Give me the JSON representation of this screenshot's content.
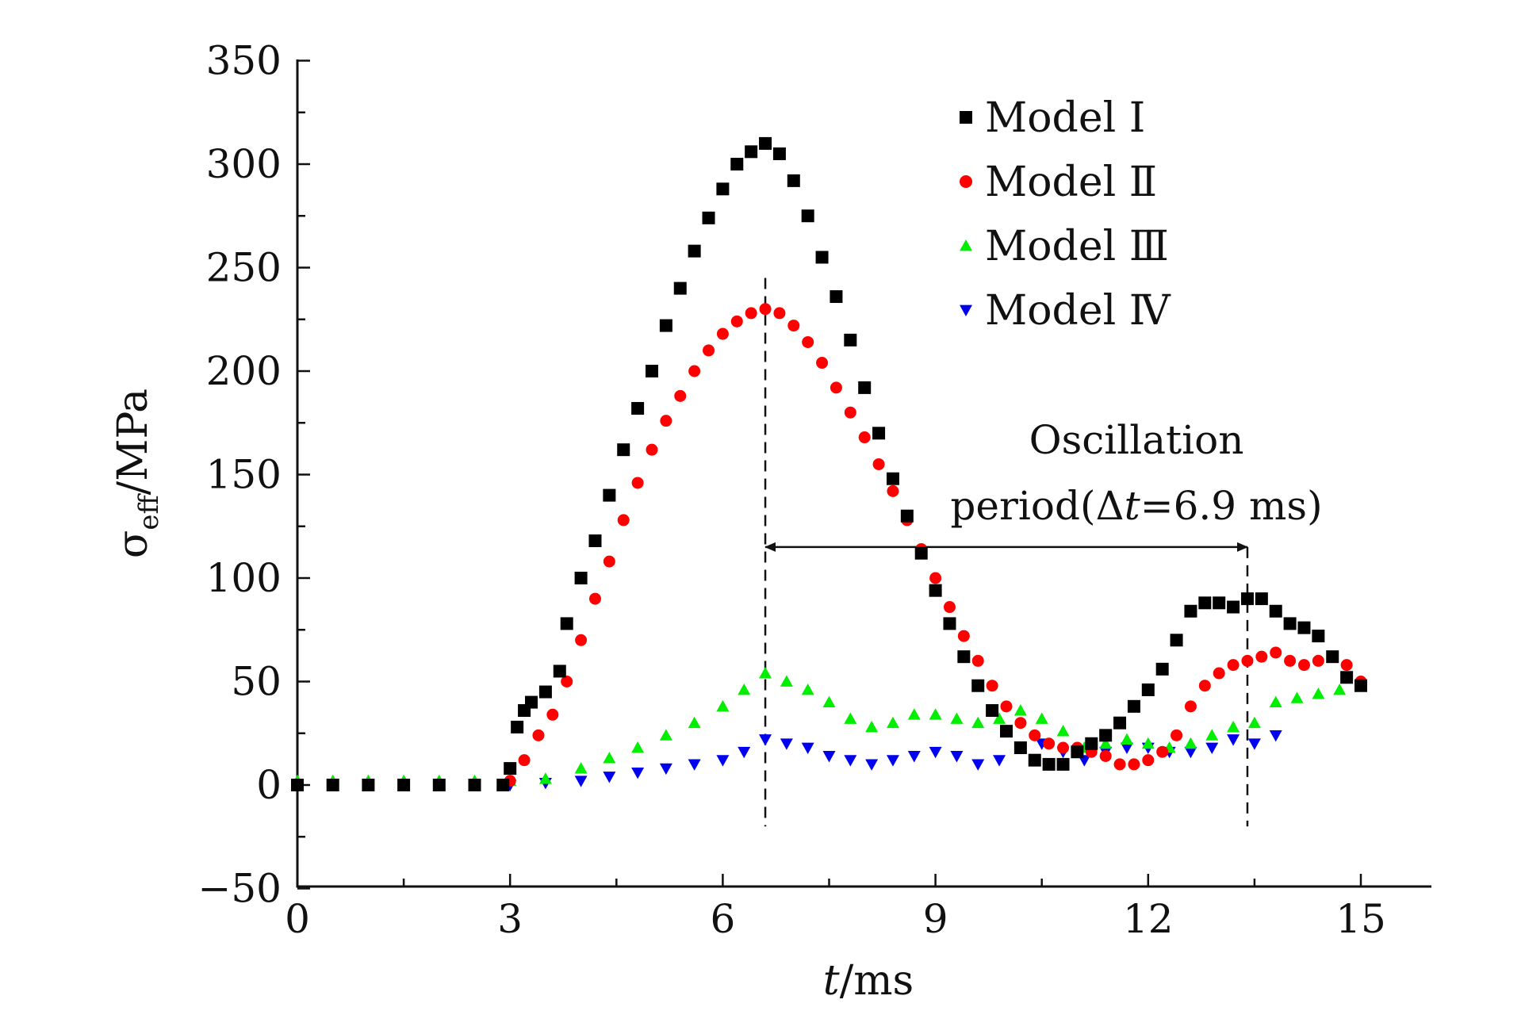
{
  "chart_data": {
    "type": "scatter",
    "xlabel": "t/ms",
    "ylabel": "σeff/MPa",
    "xlim": [
      0,
      16
    ],
    "ylim": [
      -50,
      350
    ],
    "x_ticks": [
      0,
      3,
      6,
      9,
      12,
      15
    ],
    "y_ticks": [
      -50,
      0,
      50,
      100,
      150,
      200,
      250,
      300,
      350
    ],
    "grid": false,
    "legend_position": "top-right",
    "series": [
      {
        "name": "Model Ⅰ",
        "color": "#000000",
        "marker": "square",
        "x": [
          0.0,
          0.5,
          1.0,
          1.5,
          2.0,
          2.5,
          2.9,
          3.0,
          3.1,
          3.2,
          3.3,
          3.5,
          3.7,
          3.8,
          4.0,
          4.2,
          4.4,
          4.6,
          4.8,
          5.0,
          5.2,
          5.4,
          5.6,
          5.8,
          6.0,
          6.2,
          6.4,
          6.6,
          6.8,
          7.0,
          7.2,
          7.4,
          7.6,
          7.8,
          8.0,
          8.2,
          8.4,
          8.6,
          8.8,
          9.0,
          9.2,
          9.4,
          9.6,
          9.8,
          10.0,
          10.2,
          10.4,
          10.6,
          10.8,
          11.0,
          11.2,
          11.4,
          11.6,
          11.8,
          12.0,
          12.2,
          12.4,
          12.6,
          12.8,
          13.0,
          13.2,
          13.4,
          13.6,
          13.8,
          14.0,
          14.2,
          14.4,
          14.6,
          14.8,
          15.0
        ],
        "y": [
          0,
          0,
          0,
          0,
          0,
          0,
          0,
          8,
          28,
          36,
          40,
          45,
          55,
          78,
          100,
          118,
          140,
          162,
          182,
          200,
          222,
          240,
          258,
          274,
          288,
          300,
          306,
          310,
          305,
          292,
          275,
          255,
          236,
          215,
          192,
          170,
          148,
          130,
          112,
          94,
          78,
          62,
          48,
          36,
          26,
          18,
          12,
          10,
          10,
          16,
          20,
          24,
          30,
          38,
          46,
          56,
          70,
          84,
          88,
          88,
          86,
          90,
          90,
          84,
          78,
          76,
          72,
          62,
          52,
          48
        ]
      },
      {
        "name": "Model Ⅱ",
        "color": "#ff0000",
        "marker": "circle",
        "x": [
          0.0,
          0.5,
          1.0,
          1.5,
          2.0,
          2.5,
          3.0,
          3.2,
          3.4,
          3.6,
          3.8,
          4.0,
          4.2,
          4.4,
          4.6,
          4.8,
          5.0,
          5.2,
          5.4,
          5.6,
          5.8,
          6.0,
          6.2,
          6.4,
          6.6,
          6.8,
          7.0,
          7.2,
          7.4,
          7.6,
          7.8,
          8.0,
          8.2,
          8.4,
          8.6,
          8.8,
          9.0,
          9.2,
          9.4,
          9.6,
          9.8,
          10.0,
          10.2,
          10.4,
          10.6,
          10.8,
          11.0,
          11.2,
          11.4,
          11.6,
          11.8,
          12.0,
          12.2,
          12.4,
          12.6,
          12.8,
          13.0,
          13.2,
          13.4,
          13.6,
          13.8,
          14.0,
          14.2,
          14.4,
          14.6,
          14.8,
          15.0
        ],
        "y": [
          0,
          0,
          0,
          0,
          0,
          0,
          2,
          12,
          24,
          34,
          50,
          70,
          90,
          108,
          128,
          146,
          162,
          176,
          188,
          200,
          210,
          218,
          224,
          228,
          230,
          228,
          222,
          214,
          204,
          192,
          180,
          168,
          155,
          142,
          128,
          114,
          100,
          86,
          72,
          60,
          48,
          38,
          30,
          24,
          20,
          18,
          18,
          16,
          14,
          10,
          10,
          12,
          16,
          24,
          38,
          48,
          54,
          58,
          60,
          62,
          64,
          60,
          58,
          60,
          62,
          58,
          50
        ]
      },
      {
        "name": "Model Ⅲ",
        "color": "#00ee00",
        "marker": "triangle-up",
        "x": [
          0.0,
          0.5,
          1.0,
          1.5,
          2.0,
          2.5,
          3.0,
          3.5,
          4.0,
          4.4,
          4.8,
          5.2,
          5.6,
          6.0,
          6.3,
          6.6,
          6.9,
          7.2,
          7.5,
          7.8,
          8.1,
          8.4,
          8.7,
          9.0,
          9.3,
          9.6,
          9.9,
          10.2,
          10.5,
          10.8,
          11.1,
          11.4,
          11.7,
          12.0,
          12.3,
          12.6,
          12.9,
          13.2,
          13.5,
          13.8,
          14.1,
          14.4,
          14.7,
          15.0
        ],
        "y": [
          2,
          2,
          2,
          2,
          2,
          2,
          2,
          3,
          8,
          13,
          18,
          24,
          30,
          38,
          46,
          54,
          50,
          46,
          40,
          32,
          28,
          30,
          34,
          34,
          32,
          30,
          32,
          36,
          32,
          26,
          18,
          20,
          22,
          20,
          18,
          20,
          24,
          28,
          30,
          40,
          42,
          44,
          46,
          48
        ]
      },
      {
        "name": "Model Ⅳ",
        "color": "#0000ee",
        "marker": "triangle-down",
        "x": [
          0.0,
          0.5,
          1.0,
          1.5,
          2.0,
          2.5,
          3.0,
          3.5,
          4.0,
          4.4,
          4.8,
          5.2,
          5.6,
          6.0,
          6.3,
          6.6,
          6.9,
          7.2,
          7.5,
          7.8,
          8.1,
          8.4,
          8.7,
          9.0,
          9.3,
          9.6,
          9.9,
          10.2,
          10.5,
          10.8,
          11.1,
          11.4,
          11.7,
          12.0,
          12.3,
          12.6,
          12.9,
          13.2,
          13.5,
          13.8
        ],
        "y": [
          0,
          0,
          0,
          0,
          0,
          0,
          0,
          1,
          2,
          4,
          6,
          8,
          10,
          12,
          16,
          22,
          20,
          18,
          14,
          12,
          10,
          12,
          14,
          16,
          14,
          10,
          12,
          18,
          20,
          16,
          12,
          16,
          18,
          18,
          16,
          16,
          18,
          22,
          20,
          24
        ]
      }
    ],
    "annotations": {
      "line1": "Oscillation",
      "line2_prefix": "period(Δ",
      "line2_var": "t",
      "line2_suffix": "=6.9 ms)",
      "arrow_from_x": 6.6,
      "arrow_to_x": 13.4,
      "arrow_y": 115
    }
  },
  "axis_labels": {
    "x_var": "t",
    "x_unit": "/ms",
    "y_symbol": "σ",
    "y_sub": "eff",
    "y_unit": "/MPa"
  }
}
